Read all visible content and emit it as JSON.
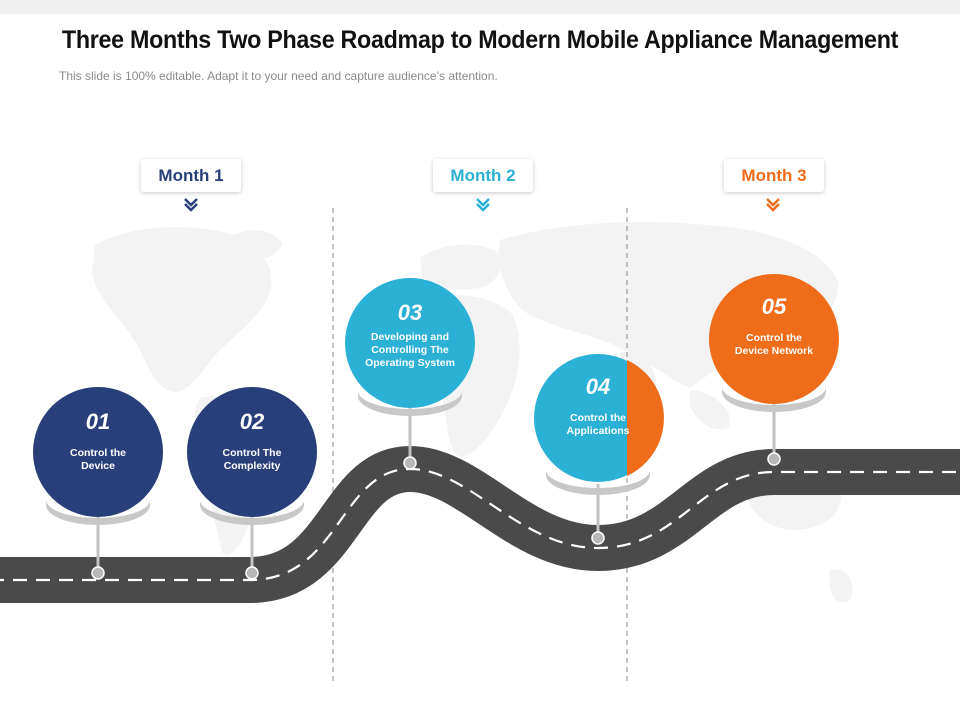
{
  "title": "Three Months Two Phase Roadmap to Modern Mobile Appliance Management",
  "subtitle": "This slide is 100% editable. Adapt it to your need and capture audience’s attention.",
  "colors": {
    "navy": "#283f7a",
    "blue": "#2bb0d6",
    "orange": "#ef6c1a",
    "road": "#4a4a4a",
    "stem": "#c2c2c2"
  },
  "months": [
    {
      "label": "Month 1",
      "color": "#283f7a"
    },
    {
      "label": "Month 2",
      "color": "#2bb0d6"
    },
    {
      "label": "Month 3",
      "color": "#ef6c1a"
    }
  ],
  "milestones": [
    {
      "number": "01",
      "text": "Control the Device",
      "color": "#283f7a"
    },
    {
      "number": "02",
      "text": "Control The Complexity",
      "color": "#283f7a"
    },
    {
      "number": "03",
      "text": "Developing and Controlling The Operating System",
      "color": "#2bb0d6"
    },
    {
      "number": "04",
      "text": "Control the Applications",
      "color": "#2bb0d6",
      "accent_color": "#ef6c1a"
    },
    {
      "number": "05",
      "text": "Control the Device Network",
      "color": "#ef6c1a"
    }
  ]
}
